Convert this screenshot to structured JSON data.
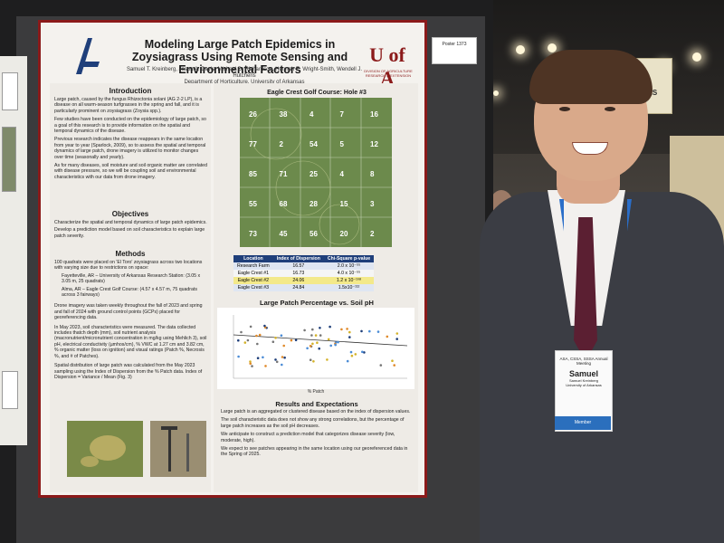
{
  "poster": {
    "title": "Modeling Large Patch Epidemics in Zoysiagrass Using Remote Sensing and Environmental Factors",
    "authors": "Samuel T. Kreinberg, Jason A. Davis, Michael D. Richardson, Hannah E. Wright-Smith, Wendell J. Hutchens",
    "department": "Department of Horticulture, University of Arkansas",
    "logo_right_text": "U of A",
    "logo_right_sub": "DIVISION OF AGRICULTURE RESEARCH & EXTENSION",
    "board_tag": "Poster 1373",
    "sections": {
      "introduction": {
        "heading": "Introduction",
        "bullets": [
          "Large patch, caused by the fungus Rhizoctonia solani (AG 2-2 LP), is a disease on all warm-season turfgrasses in the spring and fall, and it is particularly prominent on zoysiagrass (Zoysia spp.).",
          "Few studies have been conducted on the epidemiology of large patch, so a goal of this research is to provide information on the spatial and temporal dynamics of the disease.",
          "Previous research indicates the disease reappears in the same location from year to year (Sparlock, 2009), so to assess the spatial and temporal dynamics of large patch, drone imagery is utilized to monitor changes over time (seasonally and yearly).",
          "As for many diseases, soil moisture and soil organic matter are correlated with disease pressure, so we will be coupling soil and environmental characteristics with our data from drone imagery."
        ]
      },
      "objectives": {
        "heading": "Objectives",
        "bullets": [
          "Characterize the spatial and temporal dynamics of large patch epidemics.",
          "Develop a prediction model based on soil characteristics to explain large patch severity."
        ]
      },
      "methods": {
        "heading": "Methods",
        "bullets": [
          "100 quadrats were placed on 'El Toro' zoysiagrass across two locations with varying size due to restrictions on space:",
          "Fayetteville, AR – University of Arkansas Research Station: (3.05 x 3.05 m, 25 quadrats)",
          "Alma, AR – Eagle Crest Golf Course: (4.57 x 4.57 m, 75 quadrats across 3 fairways)",
          "Drone imagery was taken weekly throughout the fall of 2023 and spring and fall of 2024 with ground control points (GCPs) placed for georeferencing data.",
          "In May 2023, soil characteristics were measured. The data collected includes thatch depth (mm), soil nutrient analysis (macronutrient/micronutrient concentration in mg/kg using Mehlich 3), soil pH, electrical conductivity (µmhos/cm), % VWC at 1.27 cm and 3.82 cm, % organic matter (loss on ignition) and visual ratings (Patch %, Necrosis %, and # of Patches).",
          "Spatial distribution of large patch was calculated from the May 2023 sampling using the Index of Dispersion from the % Patch data. Index of Dispersion = Variance / Mean (Fig. 3)"
        ]
      },
      "map": {
        "title": "Eagle Crest Golf Course: Hole #3",
        "cells": [
          "26",
          "38",
          "4",
          "7",
          "16",
          "77",
          "2",
          "54",
          "5",
          "12",
          "85",
          "71",
          "25",
          "4",
          "8",
          "55",
          "68",
          "28",
          "15",
          "3",
          "73",
          "45",
          "56",
          "20",
          "2"
        ]
      },
      "table": {
        "headers": [
          "Location",
          "Index of Dispersion",
          "Chi-Square p-value"
        ],
        "rows": [
          [
            "Research Farm",
            "16.57",
            "2.0 x 10⁻⁵⁵"
          ],
          [
            "Eagle Crest #1",
            "16.73",
            "4.0 x 10⁻⁵⁵"
          ],
          [
            "Eagle Crest #2",
            "24.06",
            "1.2 x 10⁻¹⁰⁸"
          ],
          [
            "Eagle Crest #3",
            "24.84",
            "1.5x10⁻¹¹²"
          ]
        ]
      },
      "plot": {
        "title": "Large Patch Percentage vs. Soil pH",
        "xlabel": "% Patch"
      },
      "results": {
        "heading": "Results and Expectations",
        "bullets": [
          "Large patch is an aggregated or clustered disease based on the index of dispersion values.",
          "The soil characteristic data does not show any strong correlations, but the percentage of large patch increases as the soil pH decreases.",
          "We anticipate to construct a prediction model that categorizes disease severity (low, moderate, high).",
          "We expect to see patches appearing in the same location using our georeferenced data in the Spring of 2025."
        ]
      }
    }
  },
  "badge": {
    "event": "ASA, CSSA, SSSA Annual Meeting",
    "name": "Samuel",
    "full_name": "Samuel Kreinberg",
    "affiliation": "University of Arkansas",
    "role": "Member"
  },
  "background_banner": "ERS"
}
